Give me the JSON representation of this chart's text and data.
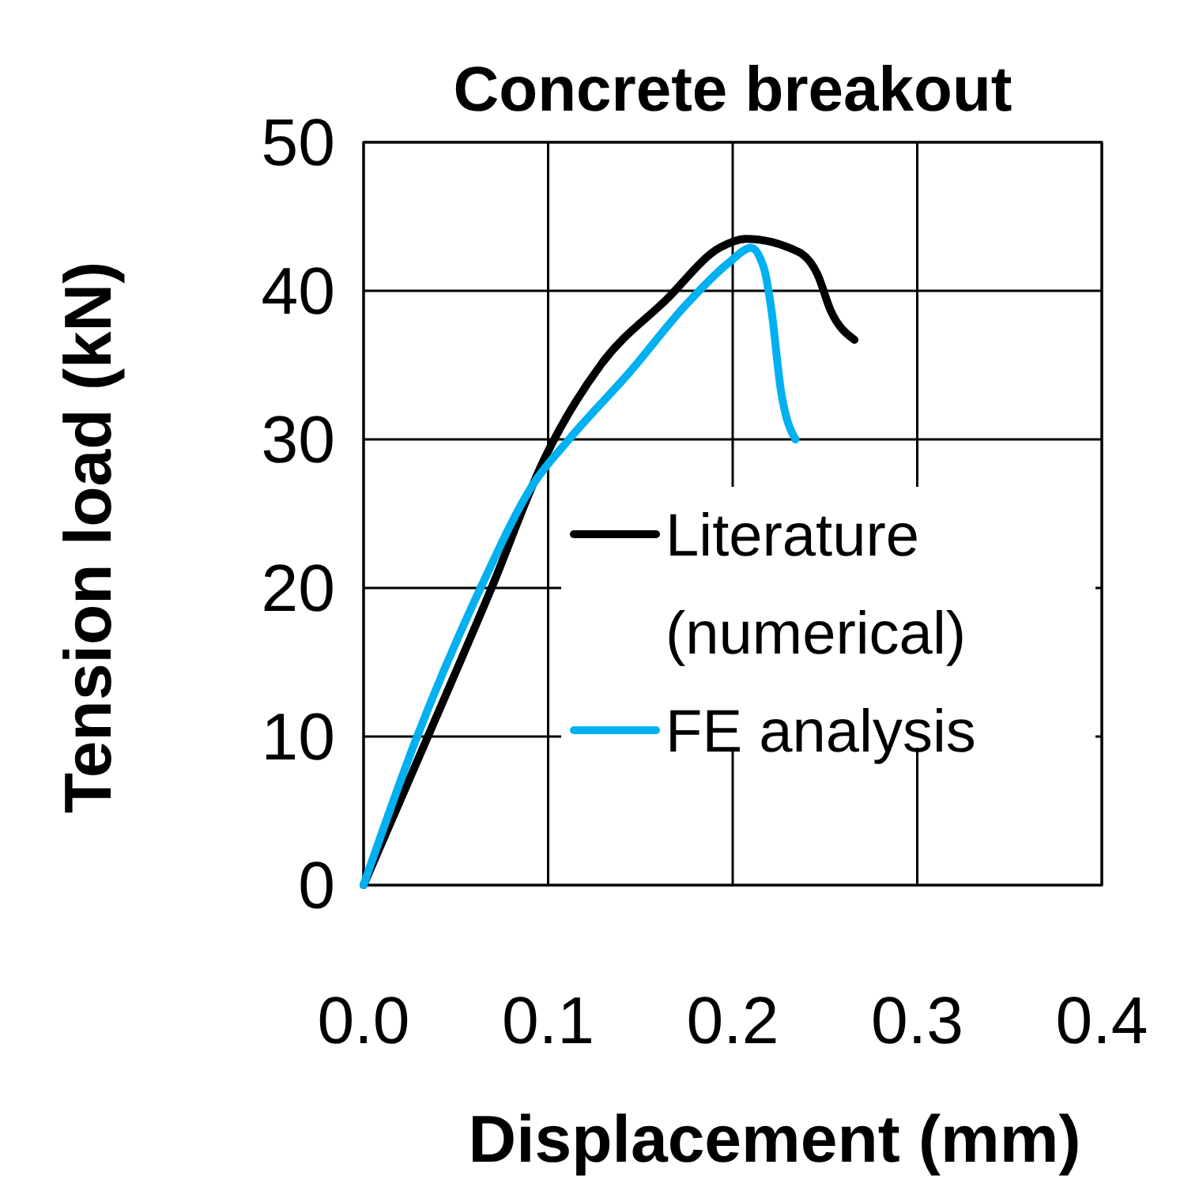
{
  "chart_data": {
    "type": "line",
    "title": "Concrete breakout",
    "xlabel": "Displacement (mm)",
    "ylabel": "Tension load (kN)",
    "xlim": [
      0,
      0.4
    ],
    "ylim": [
      0,
      50
    ],
    "xticks": [
      {
        "value": 0,
        "label": "0.0"
      },
      0.1,
      0.2,
      0.3,
      0.4
    ],
    "yticks": [
      0,
      10,
      20,
      30,
      40,
      50
    ],
    "grid": true,
    "legend": "right",
    "line_style": "solid",
    "marker": "none",
    "series": [
      {
        "name": "Literature (numerical)",
        "color": "#000000",
        "x": [
          0,
          0.0345,
          0.069,
          0.098,
          0.129,
          0.164,
          0.193,
          0.207,
          0.236,
          0.246,
          0.253,
          0.266
        ],
        "values": [
          0,
          9.9,
          19.9,
          28.7,
          35.1,
          39.4,
          42.9,
          43.5,
          42.6,
          41.1,
          38.7,
          36.7
        ]
      },
      {
        "name": "FE analysis",
        "color": "#00b0f0",
        "x": [
          0,
          0.0287,
          0.063,
          0.092,
          0.112,
          0.144,
          0.175,
          0.198,
          0.21,
          0.217,
          0.221,
          0.226,
          0.234
        ],
        "values": [
          0,
          9.9,
          19.9,
          27,
          30.1,
          34.5,
          39.1,
          41.9,
          42.9,
          41.5,
          38.7,
          33.4,
          30
        ]
      }
    ]
  }
}
